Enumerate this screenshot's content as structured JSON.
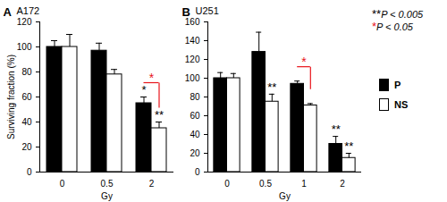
{
  "chart_data": [
    {
      "type": "bar",
      "panel": "A",
      "title": "A172",
      "x_label": "Gy",
      "y_label": "Surviving fraction (%)",
      "categories": [
        "0",
        "0.5",
        "2"
      ],
      "series": [
        {
          "name": "P",
          "color": "#000000",
          "values": [
            100,
            97,
            55
          ],
          "errors": [
            5,
            6,
            5
          ],
          "marks": [
            null,
            null,
            "*"
          ]
        },
        {
          "name": "NS",
          "color": "#ffffff",
          "values": [
            100,
            78,
            35
          ],
          "errors": [
            10,
            4,
            5
          ],
          "marks": [
            null,
            null,
            "**"
          ]
        }
      ],
      "comparisons": [
        {
          "category": "2",
          "label": "*",
          "color": "#e8141b"
        }
      ],
      "ylim": [
        0,
        120
      ],
      "yticks": [
        0,
        20,
        40,
        60,
        80,
        100,
        120
      ]
    },
    {
      "type": "bar",
      "panel": "B",
      "title": "U251",
      "x_label": "Gy",
      "categories": [
        "0",
        "0.5",
        "1",
        "2"
      ],
      "series": [
        {
          "name": "P",
          "color": "#000000",
          "values": [
            100,
            128,
            94,
            30
          ],
          "errors": [
            6,
            21,
            3,
            8
          ],
          "marks": [
            null,
            null,
            null,
            "**"
          ]
        },
        {
          "name": "NS",
          "color": "#ffffff",
          "values": [
            100,
            75,
            71,
            15
          ],
          "errors": [
            5,
            8,
            2,
            5
          ],
          "marks": [
            null,
            "**",
            null,
            "**"
          ]
        }
      ],
      "comparisons": [
        {
          "category": "1",
          "label": "*",
          "color": "#e8141b"
        }
      ],
      "ylim": [
        0,
        160
      ],
      "yticks": [
        0,
        20,
        40,
        60,
        80,
        100,
        120,
        140,
        160
      ]
    }
  ],
  "significance": [
    {
      "stars": "**",
      "text": "P < 0.005",
      "color": "#000000"
    },
    {
      "stars": "*",
      "text": "P < 0.05",
      "color": "#e8141b"
    }
  ]
}
